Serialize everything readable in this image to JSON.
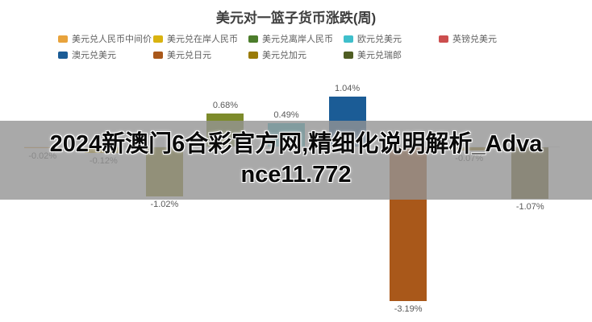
{
  "title": "美元对一篮子货币涨跌(周)",
  "watermark": {
    "text": "2024新澳门6合彩官方网,精细化说明解析_Advance11.772"
  },
  "chart_data": {
    "type": "bar",
    "title": "美元对一篮子货币涨跌(周)",
    "unit": "%",
    "ylim": [
      -3.5,
      1.5
    ],
    "grid": false,
    "legend_position": "top",
    "baseline": 0,
    "series": [
      {
        "name": "美元兑人民币中间价",
        "value": -0.02,
        "label": "-0.02%",
        "color": "#E8A33C"
      },
      {
        "name": "美元兑在岸人民币",
        "value": -0.12,
        "label": "-0.12%",
        "color": "#D9B310"
      },
      {
        "name": "美元兑离岸人民币",
        "value": -1.02,
        "label": "-1.02%",
        "color": "#8A8410"
      },
      {
        "name": "欧元兑美元",
        "value": 0.68,
        "label": "0.68%",
        "color": "#7D8B2B"
      },
      {
        "name": "英镑兑美元",
        "value": 0.49,
        "label": "0.49%",
        "color": "#3FBFCB"
      },
      {
        "name": "澳元兑美元",
        "value": 1.04,
        "label": "1.04%",
        "color": "#1B5C96"
      },
      {
        "name": "美元兑日元",
        "value": -3.19,
        "label": "-3.19%",
        "color": "#A9581A"
      },
      {
        "name": "美元兑加元",
        "value": -0.07,
        "label": "-0.07%",
        "color": "#9A7B07"
      },
      {
        "name": "美元兑瑞郎",
        "value": -1.07,
        "label": "-1.07%",
        "color": "#6B5D16"
      }
    ],
    "legend_colors": {
      "美元兑人民币中间价": "#E8A33C",
      "美元兑在岸人民币": "#D9B310",
      "美元兑离岸人民币": "#4C7D2B",
      "欧元兑美元": "#3FBFCB",
      "英镑兑美元": "#CC4E4E",
      "澳元兑美元": "#1B5C96",
      "美元兑日元": "#A9581A",
      "美元兑加元": "#9A7B07",
      "美元兑瑞郎": "#4F5D23"
    },
    "legend_rows": [
      [
        0,
        1,
        2,
        3,
        4
      ],
      [
        5,
        6,
        7,
        8
      ]
    ]
  }
}
